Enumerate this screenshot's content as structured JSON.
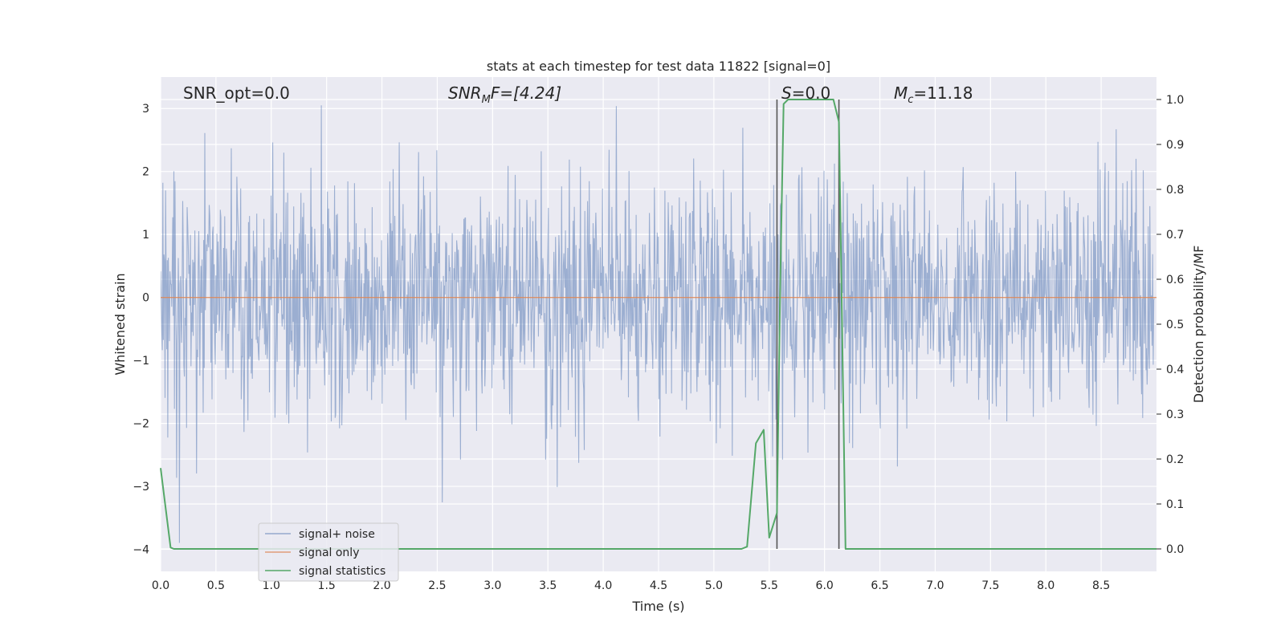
{
  "chart_data": {
    "type": "line",
    "title": "stats at each timestep for test data 11822 [signal=0]",
    "xlabel": "Time (s)",
    "ylabel": "Whitened strain",
    "y2label": "Detection probability/MF",
    "xlim": [
      0.0,
      9.0
    ],
    "ylim": [
      -4.35,
      3.5
    ],
    "y2lim": [
      -0.05,
      1.05
    ],
    "xticks": [
      "0.0",
      "0.5",
      "1.0",
      "1.5",
      "2.0",
      "2.5",
      "3.0",
      "3.5",
      "4.0",
      "4.5",
      "5.0",
      "5.5",
      "6.0",
      "6.5",
      "7.0",
      "7.5",
      "8.0",
      "8.5"
    ],
    "yticks": [
      "−4",
      "−3",
      "−2",
      "−1",
      "0",
      "1",
      "2",
      "3"
    ],
    "y2ticks": [
      "0.0",
      "0.1",
      "0.2",
      "0.3",
      "0.4",
      "0.5",
      "0.6",
      "0.7",
      "0.8",
      "0.9",
      "1.0"
    ],
    "grid": true,
    "annotations": {
      "snr_opt": "SNR_opt=0.0",
      "snr_mf_main": "SNR",
      "snr_mf_sub": "M",
      "snr_mf_rest": "F=[4.24]",
      "s_main": "S",
      "s_rest": "=0.0",
      "mc_main": "M",
      "mc_sub": "c",
      "mc_rest": "=11.18"
    },
    "vlines": [
      5.57,
      6.13
    ],
    "series": [
      {
        "name": "signal+ noise",
        "color": "#4c72b0",
        "axis": "left",
        "description_range": [
          -4.1,
          3.05
        ],
        "n_points": 1800
      },
      {
        "name": "signal only",
        "color": "#dd8452",
        "axis": "left",
        "x": [
          0.0,
          9.0
        ],
        "y": [
          0.0,
          0.0
        ]
      },
      {
        "name": "signal statistics",
        "color": "#55a868",
        "axis": "right",
        "x": [
          0.0,
          0.09,
          0.12,
          0.25,
          5.25,
          5.3,
          5.38,
          5.45,
          5.5,
          5.57,
          5.6,
          5.63,
          5.67,
          6.05,
          6.08,
          6.13,
          6.19,
          6.25,
          9.0
        ],
        "y": [
          0.18,
          0.003,
          0.0,
          0.0,
          0.0,
          0.005,
          0.235,
          0.265,
          0.025,
          0.08,
          0.6,
          0.99,
          1.0,
          1.0,
          1.0,
          0.95,
          0.0,
          0.0,
          0.0
        ]
      }
    ],
    "legend": {
      "placement": "lower-left"
    }
  }
}
